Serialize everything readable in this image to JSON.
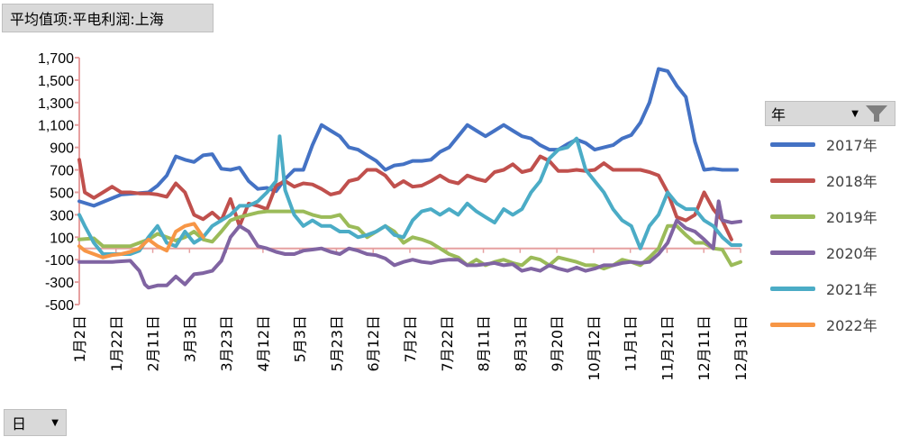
{
  "title_button": {
    "label": "平均值项:平电利润:上海"
  },
  "field_button": {
    "label": "日",
    "icon": "dropdown-arrow-icon"
  },
  "legend": {
    "header": "年",
    "header_icons": [
      "dropdown-arrow-icon",
      "filter-icon"
    ]
  },
  "chart_data": {
    "type": "line",
    "title": "平均值项:平电利润:上海",
    "xlabel": "",
    "ylabel": "",
    "ylim": [
      -500,
      1700
    ],
    "yticks": [
      "1,700",
      "1,500",
      "1,300",
      "1,100",
      "900",
      "700",
      "500",
      "300",
      "100",
      "-100",
      "-300",
      "-500"
    ],
    "ytick_values": [
      1700,
      1500,
      1300,
      1100,
      900,
      700,
      500,
      300,
      100,
      -100,
      -300,
      -500
    ],
    "x_tick_labels": [
      "1月2日",
      "1月22日",
      "2月11日",
      "3月3日",
      "3月23日",
      "4月12日",
      "5月3日",
      "5月23日",
      "6月12日",
      "7月2日",
      "7月22日",
      "8月11日",
      "8月31日",
      "9月20日",
      "10月12日",
      "11月1日",
      "11月21日",
      "12月11日",
      "12月31日"
    ],
    "x_day_range": [
      2,
      365
    ],
    "zero_line": 0,
    "legend_position": "right",
    "series": [
      {
        "name": "2017年",
        "color": "#4472C4",
        "x": [
          2,
          10,
          25,
          40,
          45,
          50,
          55,
          60,
          65,
          70,
          75,
          80,
          85,
          90,
          95,
          100,
          105,
          110,
          115,
          120,
          125,
          130,
          135,
          140,
          145,
          150,
          155,
          160,
          165,
          170,
          175,
          180,
          185,
          190,
          195,
          200,
          205,
          210,
          215,
          220,
          225,
          230,
          235,
          240,
          245,
          250,
          255,
          260,
          265,
          270,
          275,
          280,
          285,
          290,
          295,
          300,
          305,
          310,
          315,
          320,
          325,
          330,
          335,
          340,
          345,
          350,
          355,
          360,
          363
        ],
        "y": [
          420,
          380,
          480,
          500,
          560,
          650,
          820,
          790,
          770,
          830,
          840,
          710,
          700,
          720,
          600,
          530,
          540,
          510,
          620,
          700,
          700,
          920,
          1100,
          1050,
          1000,
          900,
          880,
          830,
          780,
          700,
          740,
          750,
          780,
          780,
          790,
          860,
          900,
          1000,
          1100,
          1050,
          1000,
          1050,
          1100,
          1050,
          1000,
          980,
          920,
          880,
          880,
          930,
          970,
          940,
          880,
          900,
          920,
          980,
          1010,
          1120,
          1300,
          1600,
          1580,
          1450,
          1350,
          950,
          700,
          710,
          700,
          700,
          700
        ]
      },
      {
        "name": "2018年",
        "color": "#C0504D",
        "x": [
          2,
          5,
          10,
          15,
          20,
          25,
          30,
          35,
          40,
          45,
          50,
          55,
          60,
          65,
          70,
          75,
          80,
          85,
          90,
          95,
          100,
          105,
          110,
          115,
          120,
          125,
          130,
          135,
          140,
          145,
          150,
          155,
          160,
          165,
          170,
          175,
          180,
          185,
          190,
          195,
          200,
          205,
          210,
          215,
          220,
          225,
          230,
          235,
          240,
          245,
          250,
          255,
          260,
          265,
          270,
          275,
          280,
          285,
          290,
          295,
          300,
          305,
          310,
          315,
          320,
          325,
          330,
          335,
          340,
          345,
          350,
          355,
          360
        ],
        "y": [
          790,
          500,
          450,
          500,
          550,
          500,
          500,
          490,
          490,
          480,
          460,
          580,
          500,
          300,
          260,
          320,
          250,
          440,
          200,
          400,
          380,
          350,
          560,
          600,
          550,
          580,
          570,
          530,
          480,
          500,
          600,
          620,
          700,
          700,
          650,
          550,
          600,
          550,
          560,
          600,
          650,
          600,
          580,
          650,
          620,
          600,
          680,
          700,
          750,
          680,
          700,
          820,
          780,
          690,
          690,
          700,
          690,
          700,
          760,
          700,
          700,
          700,
          700,
          680,
          650,
          500,
          280,
          250,
          300,
          500,
          350,
          250,
          80
        ]
      },
      {
        "name": "2019年",
        "color": "#9BBB59",
        "x": [
          2,
          10,
          15,
          20,
          25,
          30,
          35,
          40,
          45,
          50,
          55,
          60,
          65,
          70,
          75,
          80,
          85,
          90,
          95,
          100,
          105,
          110,
          115,
          120,
          125,
          130,
          135,
          140,
          145,
          150,
          155,
          160,
          165,
          170,
          175,
          180,
          185,
          190,
          195,
          200,
          205,
          210,
          215,
          220,
          225,
          230,
          235,
          240,
          245,
          250,
          255,
          260,
          265,
          270,
          275,
          280,
          285,
          290,
          295,
          300,
          305,
          310,
          315,
          320,
          325,
          330,
          335,
          340,
          345,
          350,
          355,
          360,
          365
        ],
        "y": [
          80,
          90,
          20,
          20,
          20,
          20,
          50,
          80,
          130,
          100,
          70,
          100,
          150,
          80,
          60,
          150,
          250,
          280,
          300,
          320,
          330,
          330,
          330,
          330,
          330,
          300,
          280,
          280,
          300,
          200,
          180,
          100,
          150,
          200,
          150,
          50,
          100,
          80,
          50,
          0,
          -50,
          -80,
          -150,
          -100,
          -150,
          -120,
          -100,
          -130,
          -150,
          -80,
          -100,
          -150,
          -80,
          -100,
          -120,
          -150,
          -150,
          -180,
          -150,
          -100,
          -120,
          -150,
          -80,
          0,
          200,
          200,
          120,
          50,
          50,
          0,
          -10,
          -150,
          -120
        ]
      },
      {
        "name": "2020年",
        "color": "#8064A2",
        "x": [
          2,
          10,
          20,
          30,
          35,
          38,
          40,
          45,
          50,
          55,
          60,
          65,
          70,
          75,
          80,
          85,
          90,
          95,
          100,
          105,
          110,
          115,
          120,
          125,
          130,
          135,
          140,
          145,
          150,
          155,
          160,
          165,
          170,
          175,
          180,
          185,
          190,
          195,
          200,
          205,
          210,
          215,
          220,
          225,
          230,
          235,
          240,
          245,
          250,
          255,
          260,
          265,
          270,
          275,
          280,
          285,
          290,
          295,
          300,
          305,
          310,
          315,
          320,
          325,
          330,
          335,
          340,
          345,
          350,
          353,
          355,
          360,
          365
        ],
        "y": [
          -120,
          -120,
          -120,
          -110,
          -200,
          -320,
          -350,
          -330,
          -330,
          -250,
          -320,
          -230,
          -220,
          -200,
          -110,
          100,
          200,
          150,
          20,
          0,
          -30,
          -50,
          -50,
          -20,
          -10,
          0,
          -30,
          -50,
          0,
          -20,
          -50,
          -60,
          -90,
          -150,
          -120,
          -100,
          -120,
          -130,
          -110,
          -100,
          -100,
          -150,
          -150,
          -140,
          -130,
          -150,
          -140,
          -200,
          -180,
          -200,
          -150,
          -180,
          -200,
          -170,
          -200,
          -180,
          -150,
          -150,
          -130,
          -120,
          -130,
          -120,
          -50,
          50,
          250,
          180,
          150,
          80,
          0,
          420,
          250,
          230,
          240
        ]
      },
      {
        "name": "2021年",
        "color": "#4BACC6",
        "x": [
          2,
          5,
          10,
          15,
          20,
          25,
          30,
          35,
          40,
          45,
          50,
          55,
          60,
          65,
          70,
          75,
          80,
          85,
          90,
          95,
          100,
          105,
          110,
          112,
          115,
          120,
          125,
          130,
          135,
          140,
          145,
          150,
          155,
          160,
          165,
          170,
          175,
          180,
          185,
          190,
          195,
          200,
          205,
          210,
          215,
          220,
          225,
          230,
          235,
          240,
          245,
          250,
          255,
          260,
          265,
          270,
          275,
          280,
          285,
          290,
          295,
          300,
          305,
          310,
          315,
          320,
          325,
          330,
          335,
          340,
          345,
          350,
          355,
          360,
          365
        ],
        "y": [
          300,
          200,
          50,
          -50,
          -50,
          -50,
          -50,
          -20,
          100,
          200,
          50,
          20,
          150,
          50,
          100,
          200,
          250,
          300,
          380,
          380,
          420,
          500,
          600,
          1000,
          520,
          300,
          200,
          250,
          200,
          200,
          150,
          150,
          100,
          120,
          150,
          200,
          120,
          100,
          250,
          330,
          350,
          300,
          350,
          300,
          400,
          330,
          280,
          230,
          350,
          300,
          350,
          500,
          600,
          800,
          880,
          900,
          980,
          700,
          600,
          500,
          350,
          250,
          200,
          0,
          200,
          300,
          500,
          400,
          350,
          350,
          250,
          200,
          100,
          30,
          30
        ]
      },
      {
        "name": "2022年",
        "color": "#F79646",
        "x": [
          2,
          5,
          10,
          15,
          20,
          25,
          30,
          35,
          40,
          45,
          50,
          55,
          60,
          65,
          70
        ],
        "y": [
          20,
          -20,
          -50,
          -80,
          -60,
          -50,
          -30,
          0,
          80,
          20,
          -20,
          150,
          200,
          220,
          100
        ]
      }
    ]
  }
}
